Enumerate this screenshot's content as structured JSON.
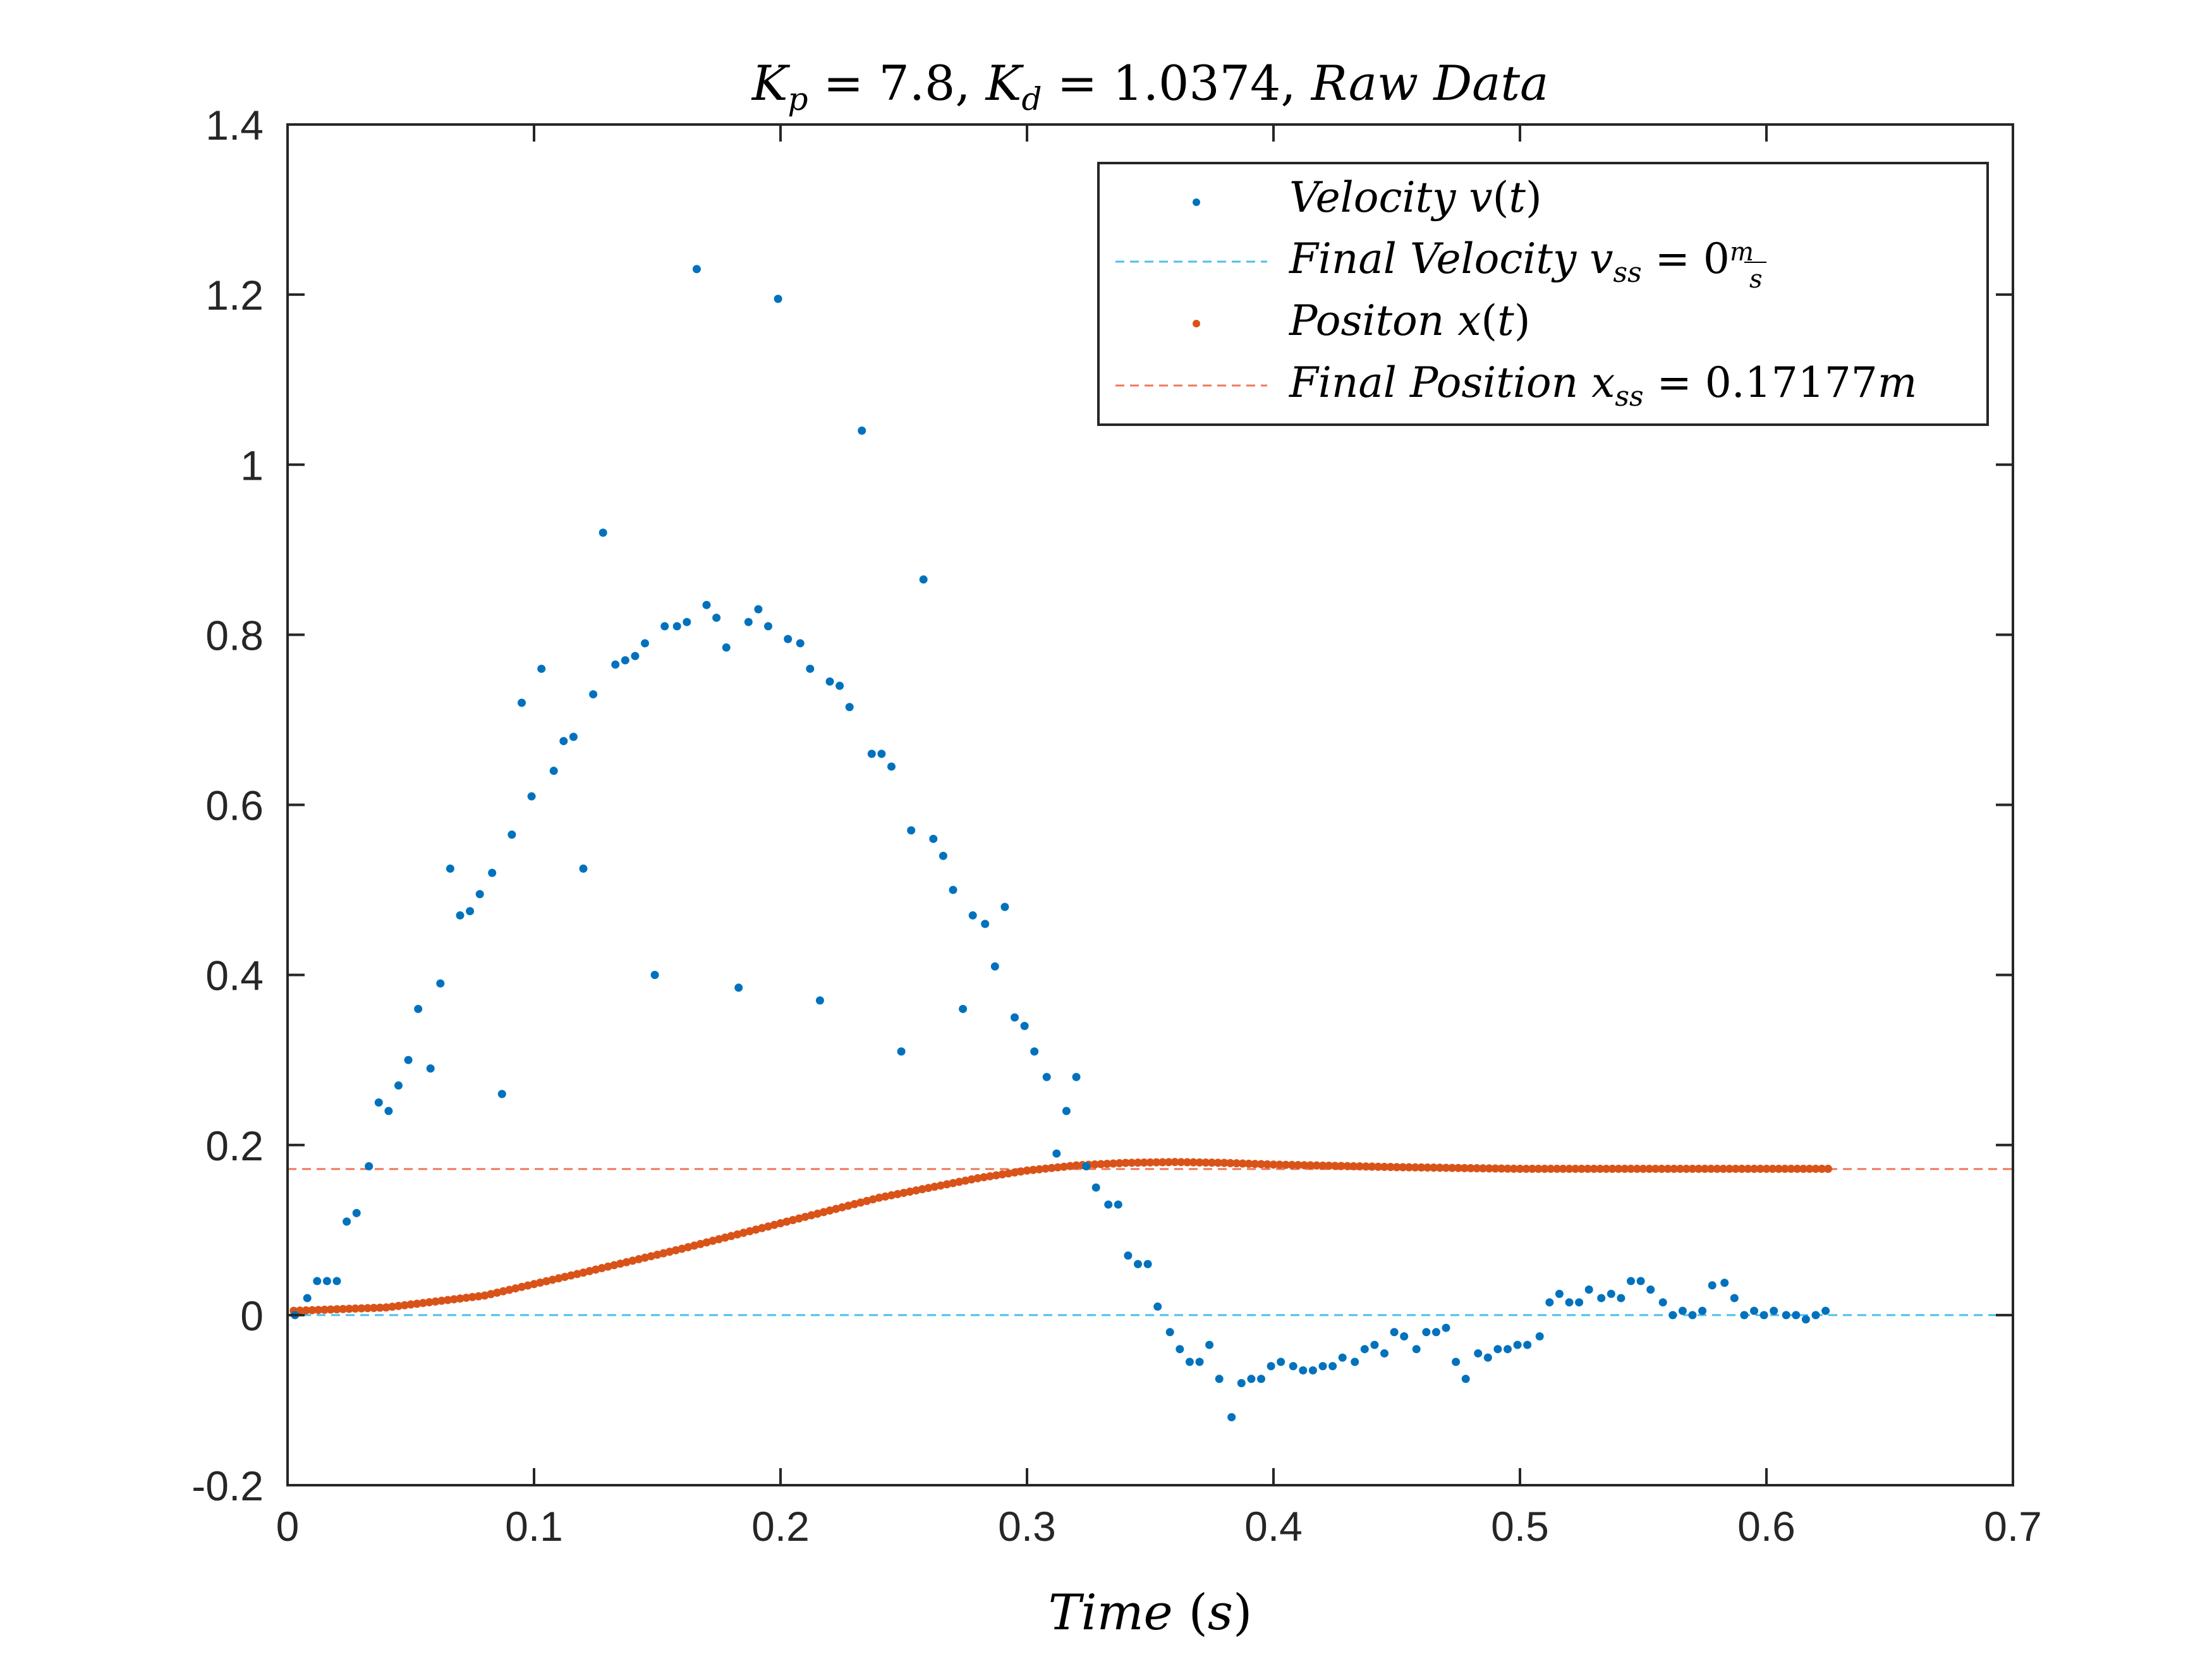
{
  "chart_data": {
    "type": "scatter",
    "title": "K_p = 7.8, K_d = 1.0374,  Raw Data",
    "xlabel": "Time (s)",
    "ylabel": "",
    "xlim": [
      0,
      0.7
    ],
    "ylim": [
      -0.2,
      1.4
    ],
    "xticks": [
      "0",
      "0.1",
      "0.2",
      "0.3",
      "0.4",
      "0.5",
      "0.6",
      "0.7"
    ],
    "yticks": [
      "-0.2",
      "0",
      "0.2",
      "0.4",
      "0.6",
      "0.8",
      "1",
      "1.2",
      "1.4"
    ],
    "grid": false,
    "legend_position": "top-right",
    "series": [
      {
        "name": "Velocity v(t)",
        "kind": "scatter",
        "color": "#0072BD",
        "x": [
          0.003,
          0.008,
          0.012,
          0.016,
          0.02,
          0.024,
          0.028,
          0.033,
          0.037,
          0.041,
          0.045,
          0.049,
          0.053,
          0.058,
          0.062,
          0.066,
          0.07,
          0.074,
          0.078,
          0.083,
          0.087,
          0.091,
          0.095,
          0.099,
          0.103,
          0.108,
          0.112,
          0.116,
          0.12,
          0.124,
          0.128,
          0.133,
          0.137,
          0.141,
          0.145,
          0.149,
          0.153,
          0.158,
          0.162,
          0.166,
          0.17,
          0.174,
          0.178,
          0.183,
          0.187,
          0.191,
          0.195,
          0.199,
          0.203,
          0.208,
          0.212,
          0.216,
          0.22,
          0.224,
          0.228,
          0.233,
          0.237,
          0.241,
          0.245,
          0.249,
          0.253,
          0.258,
          0.262,
          0.266,
          0.27,
          0.274,
          0.278,
          0.283,
          0.287,
          0.291,
          0.295,
          0.299,
          0.303,
          0.308,
          0.312,
          0.316,
          0.32,
          0.324,
          0.328,
          0.333,
          0.337,
          0.341,
          0.345,
          0.349,
          0.353,
          0.358,
          0.362,
          0.366,
          0.37,
          0.374,
          0.378,
          0.383,
          0.387,
          0.391,
          0.395,
          0.399,
          0.403,
          0.408,
          0.412,
          0.416,
          0.42,
          0.424,
          0.428,
          0.433,
          0.437,
          0.441,
          0.445,
          0.449,
          0.453,
          0.458,
          0.462,
          0.466,
          0.47,
          0.474,
          0.478,
          0.483,
          0.487,
          0.491,
          0.495,
          0.499,
          0.503,
          0.508,
          0.512,
          0.516,
          0.52,
          0.524,
          0.528,
          0.533,
          0.537,
          0.541,
          0.545,
          0.549,
          0.553,
          0.558,
          0.562,
          0.566,
          0.57,
          0.574,
          0.578,
          0.583,
          0.587,
          0.591,
          0.595,
          0.599,
          0.603,
          0.608,
          0.612,
          0.616,
          0.62,
          0.624
        ],
        "y": [
          0.0,
          0.02,
          0.04,
          0.04,
          0.04,
          0.11,
          0.12,
          0.175,
          0.25,
          0.24,
          0.27,
          0.3,
          0.36,
          0.29,
          0.39,
          0.525,
          0.47,
          0.475,
          0.495,
          0.52,
          0.26,
          0.565,
          0.72,
          0.61,
          0.76,
          0.64,
          0.675,
          0.68,
          0.525,
          0.73,
          0.92,
          0.765,
          0.77,
          0.775,
          0.79,
          0.4,
          0.81,
          0.81,
          0.815,
          1.23,
          0.835,
          0.82,
          0.785,
          0.385,
          0.815,
          0.83,
          0.81,
          1.195,
          0.795,
          0.79,
          0.76,
          0.37,
          0.745,
          0.74,
          0.715,
          1.04,
          0.66,
          0.66,
          0.645,
          0.31,
          0.57,
          0.865,
          0.56,
          0.54,
          0.5,
          0.36,
          0.47,
          0.46,
          0.41,
          0.48,
          0.35,
          0.34,
          0.31,
          0.28,
          0.19,
          0.24,
          0.28,
          0.175,
          0.15,
          0.13,
          0.13,
          0.07,
          0.06,
          0.06,
          0.01,
          -0.02,
          -0.04,
          -0.055,
          -0.055,
          -0.035,
          -0.075,
          -0.12,
          -0.08,
          -0.075,
          -0.075,
          -0.06,
          -0.055,
          -0.06,
          -0.065,
          -0.065,
          -0.06,
          -0.06,
          -0.05,
          -0.055,
          -0.04,
          -0.035,
          -0.045,
          -0.02,
          -0.025,
          -0.04,
          -0.02,
          -0.02,
          -0.015,
          -0.055,
          -0.075,
          -0.045,
          -0.05,
          -0.04,
          -0.04,
          -0.035,
          -0.035,
          -0.025,
          0.015,
          0.025,
          0.015,
          0.015,
          0.03,
          0.02,
          0.025,
          0.02,
          0.04,
          0.04,
          0.03,
          0.015,
          0.0,
          0.005,
          0.0,
          0.005,
          0.035,
          0.038,
          0.02,
          0.0,
          0.005,
          0.0,
          0.005,
          0.0,
          0.0,
          -0.005,
          0.0,
          0.005
        ]
      },
      {
        "name": "Final Velocity v_ss = 0 m/s",
        "kind": "hline",
        "color": "#4DBEEE",
        "y": 0
      },
      {
        "name": "Positon x(t)",
        "kind": "scatter",
        "color": "#D95319",
        "x_start": 0.0025,
        "x_step": 0.0025,
        "count": 250,
        "curve_points": {
          "x": [
            0.0025,
            0.04,
            0.08,
            0.12,
            0.16,
            0.2,
            0.24,
            0.28,
            0.3,
            0.32,
            0.34,
            0.36,
            0.38,
            0.4,
            0.45,
            0.5,
            0.55,
            0.6,
            0.625
          ],
          "y": [
            0.005,
            0.009,
            0.023,
            0.05,
            0.078,
            0.108,
            0.138,
            0.161,
            0.17,
            0.176,
            0.179,
            0.18,
            0.179,
            0.177,
            0.174,
            0.172,
            0.172,
            0.172,
            0.172
          ]
        }
      },
      {
        "name": "Final Position x_ss = 0.17177m",
        "kind": "hline",
        "color": "#ED7A5A",
        "y": 0.17177
      }
    ],
    "legend": [
      {
        "label": "Velocity v(t)",
        "marker": "dot",
        "color": "#0072BD"
      },
      {
        "label": "Final Velocity v_ss = 0 m/s",
        "marker": "dash",
        "color": "#4DBEEE"
      },
      {
        "label": "Positon x(t)",
        "marker": "dot",
        "color": "#D95319"
      },
      {
        "label": "Final Position x_ss = 0.17177m",
        "marker": "dash",
        "color": "#ED7A5A"
      }
    ]
  }
}
